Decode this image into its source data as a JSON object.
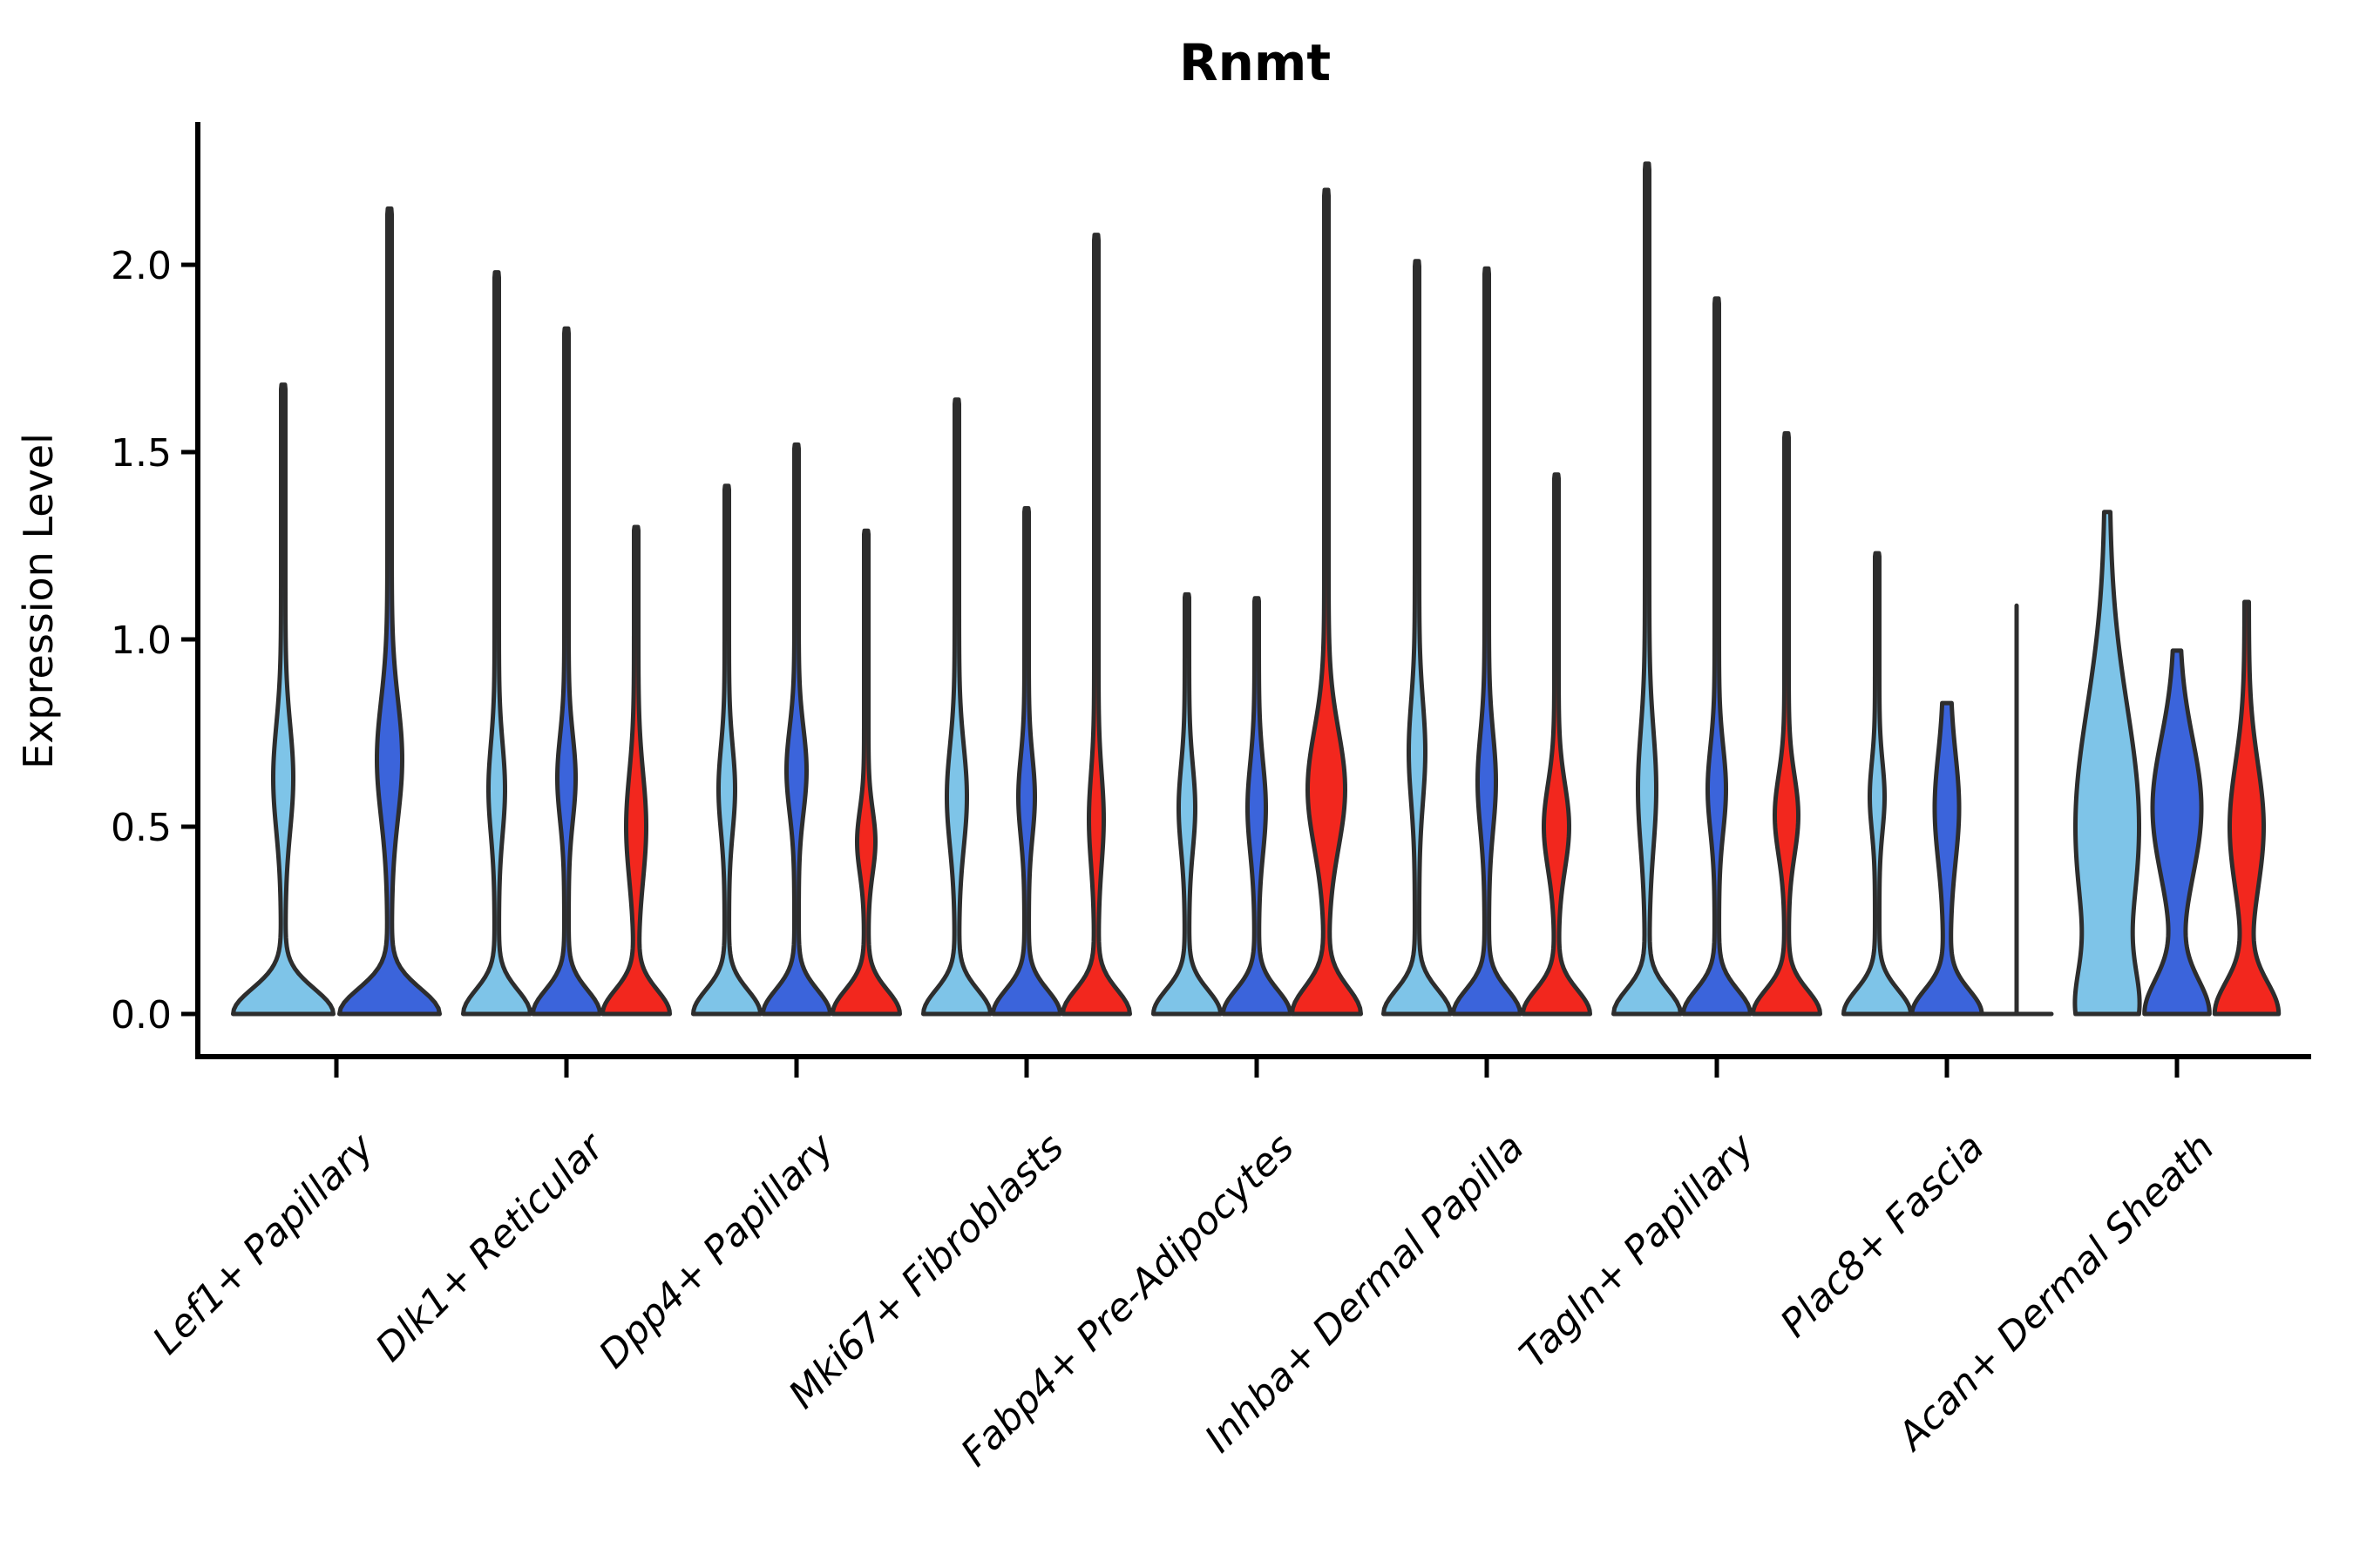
{
  "title": "Rnmt",
  "axes": {
    "ylabel": "Expression Level",
    "ytick_labels": [
      "0.0",
      "0.5",
      "1.0",
      "1.5",
      "2.0"
    ],
    "ytick_values": [
      0.0,
      0.5,
      1.0,
      1.5,
      2.0
    ]
  },
  "style": {
    "background": "#ffffff",
    "outline_color": "#2d2d2d",
    "axis_color": "#000000",
    "stroke_width": 5
  },
  "chart_data": {
    "type": "violin",
    "title": "Rnmt",
    "xlabel": "",
    "ylabel": "Expression Level",
    "ylim": [
      -0.11,
      2.38
    ],
    "grid": false,
    "legend": "none",
    "categories": [
      "Lef1+ Papillary",
      "Dlk1+ Reticular",
      "Dpp4+ Papillary",
      "Mki67+ Fibroblasts",
      "Fabp4+ Pre-Adipocytes",
      "Inhba+ Dermal Papilla",
      "Tagln+ Papillary",
      "Plac8+ Fascia",
      "Acan+ Dermal Sheath"
    ],
    "series_colors": [
      "#7EC4E8",
      "#3B64DB",
      "#F2271E"
    ],
    "violins": [
      {
        "cat": 0,
        "series": 0,
        "max": 1.68,
        "kind": "violin",
        "base_amp": 55,
        "base_sigma": 0.095,
        "bulge_amp": 9,
        "bulge_center": 0.63,
        "bulge_sigma": 0.2,
        "stem": 2.5,
        "tip": 2
      },
      {
        "cat": 0,
        "series": 1,
        "max": 2.15,
        "kind": "violin",
        "base_amp": 55,
        "base_sigma": 0.095,
        "bulge_amp": 12,
        "bulge_center": 0.68,
        "bulge_sigma": 0.22,
        "stem": 2.5,
        "tip": 2
      },
      {
        "cat": 1,
        "series": 0,
        "max": 1.98,
        "kind": "violin",
        "base_amp": 36,
        "base_sigma": 0.09,
        "bulge_amp": 7,
        "bulge_center": 0.6,
        "bulge_sigma": 0.17,
        "stem": 2.5,
        "tip": 2
      },
      {
        "cat": 1,
        "series": 1,
        "max": 1.83,
        "kind": "violin",
        "base_amp": 36,
        "base_sigma": 0.09,
        "bulge_amp": 8,
        "bulge_center": 0.63,
        "bulge_sigma": 0.16,
        "stem": 2.5,
        "tip": 2
      },
      {
        "cat": 1,
        "series": 2,
        "max": 1.3,
        "kind": "violin",
        "base_amp": 36,
        "base_sigma": 0.09,
        "bulge_amp": 9,
        "bulge_center": 0.5,
        "bulge_sigma": 0.2,
        "stem": 2.5,
        "tip": 2
      },
      {
        "cat": 2,
        "series": 0,
        "max": 1.41,
        "kind": "violin",
        "base_amp": 36,
        "base_sigma": 0.09,
        "bulge_amp": 7,
        "bulge_center": 0.6,
        "bulge_sigma": 0.16,
        "stem": 2.5,
        "tip": 2
      },
      {
        "cat": 2,
        "series": 1,
        "max": 1.52,
        "kind": "violin",
        "base_amp": 36,
        "base_sigma": 0.09,
        "bulge_amp": 9,
        "bulge_center": 0.65,
        "bulge_sigma": 0.16,
        "stem": 2.5,
        "tip": 2
      },
      {
        "cat": 2,
        "series": 2,
        "max": 1.29,
        "kind": "violin",
        "base_amp": 36,
        "base_sigma": 0.09,
        "bulge_amp": 8,
        "bulge_center": 0.46,
        "bulge_sigma": 0.12,
        "stem": 2.5,
        "tip": 2
      },
      {
        "cat": 3,
        "series": 0,
        "max": 1.64,
        "kind": "violin",
        "base_amp": 36,
        "base_sigma": 0.09,
        "bulge_amp": 9,
        "bulge_center": 0.58,
        "bulge_sigma": 0.19,
        "stem": 2.5,
        "tip": 2
      },
      {
        "cat": 3,
        "series": 1,
        "max": 1.35,
        "kind": "violin",
        "base_amp": 36,
        "base_sigma": 0.09,
        "bulge_amp": 7,
        "bulge_center": 0.58,
        "bulge_sigma": 0.15,
        "stem": 2.5,
        "tip": 2
      },
      {
        "cat": 3,
        "series": 2,
        "max": 2.08,
        "kind": "violin",
        "base_amp": 36,
        "base_sigma": 0.09,
        "bulge_amp": 6,
        "bulge_center": 0.52,
        "bulge_sigma": 0.17,
        "stem": 2.5,
        "tip": 2
      },
      {
        "cat": 4,
        "series": 0,
        "max": 1.12,
        "kind": "violin",
        "base_amp": 36,
        "base_sigma": 0.09,
        "bulge_amp": 7,
        "bulge_center": 0.55,
        "bulge_sigma": 0.16,
        "stem": 2.5,
        "tip": 2
      },
      {
        "cat": 4,
        "series": 1,
        "max": 1.11,
        "kind": "violin",
        "base_amp": 36,
        "base_sigma": 0.09,
        "bulge_amp": 8,
        "bulge_center": 0.55,
        "bulge_sigma": 0.17,
        "stem": 2.5,
        "tip": 2
      },
      {
        "cat": 4,
        "series": 2,
        "max": 2.2,
        "kind": "violin",
        "base_amp": 37,
        "base_sigma": 0.1,
        "bulge_amp": 19,
        "bulge_center": 0.6,
        "bulge_sigma": 0.22,
        "stem": 2.5,
        "tip": 2
      },
      {
        "cat": 5,
        "series": 0,
        "max": 2.01,
        "kind": "violin",
        "base_amp": 36,
        "base_sigma": 0.09,
        "bulge_amp": 7,
        "bulge_center": 0.7,
        "bulge_sigma": 0.19,
        "stem": 2.5,
        "tip": 2
      },
      {
        "cat": 5,
        "series": 1,
        "max": 1.99,
        "kind": "violin",
        "base_amp": 36,
        "base_sigma": 0.09,
        "bulge_amp": 8,
        "bulge_center": 0.62,
        "bulge_sigma": 0.18,
        "stem": 2.5,
        "tip": 2
      },
      {
        "cat": 5,
        "series": 2,
        "max": 1.44,
        "kind": "violin",
        "base_amp": 36,
        "base_sigma": 0.09,
        "bulge_amp": 12,
        "bulge_center": 0.5,
        "bulge_sigma": 0.16,
        "stem": 2.5,
        "tip": 2
      },
      {
        "cat": 6,
        "series": 0,
        "max": 2.27,
        "kind": "violin",
        "base_amp": 36,
        "base_sigma": 0.09,
        "bulge_amp": 8,
        "bulge_center": 0.6,
        "bulge_sigma": 0.22,
        "stem": 2.5,
        "tip": 2
      },
      {
        "cat": 6,
        "series": 1,
        "max": 1.91,
        "kind": "violin",
        "base_amp": 36,
        "base_sigma": 0.09,
        "bulge_amp": 8,
        "bulge_center": 0.6,
        "bulge_sigma": 0.16,
        "stem": 2.5,
        "tip": 2
      },
      {
        "cat": 6,
        "series": 2,
        "max": 1.55,
        "kind": "violin",
        "base_amp": 36,
        "base_sigma": 0.09,
        "bulge_amp": 11,
        "bulge_center": 0.53,
        "bulge_sigma": 0.15,
        "stem": 2.5,
        "tip": 2
      },
      {
        "cat": 7,
        "series": 0,
        "max": 1.23,
        "kind": "violin",
        "base_amp": 36,
        "base_sigma": 0.09,
        "bulge_amp": 6,
        "bulge_center": 0.58,
        "bulge_sigma": 0.13,
        "stem": 2.5,
        "tip": 2
      },
      {
        "cat": 7,
        "series": 1,
        "max": 0.83,
        "kind": "violin",
        "base_amp": 36,
        "base_sigma": 0.09,
        "bulge_amp": 10,
        "bulge_center": 0.55,
        "bulge_sigma": 0.2,
        "stem": 4,
        "tip": 6
      },
      {
        "cat": 7,
        "series": 2,
        "max": 1.09,
        "kind": "collapsed-line",
        "base_halfwidth": 40,
        "stem": 0,
        "tip": 0
      },
      {
        "cat": 8,
        "series": 0,
        "max": 1.34,
        "kind": "violin",
        "base_amp": 24,
        "base_sigma": 0.16,
        "bulge_amp": 34,
        "bulge_center": 0.5,
        "bulge_sigma": 0.45,
        "stem": 2.5,
        "tip": 5
      },
      {
        "cat": 8,
        "series": 1,
        "max": 0.97,
        "kind": "violin",
        "base_amp": 34,
        "base_sigma": 0.13,
        "bulge_amp": 25,
        "bulge_center": 0.55,
        "bulge_sigma": 0.26,
        "stem": 3,
        "tip": 5
      },
      {
        "cat": 8,
        "series": 2,
        "max": 1.1,
        "kind": "violin",
        "base_amp": 34,
        "base_sigma": 0.12,
        "bulge_amp": 17,
        "bulge_center": 0.5,
        "bulge_sigma": 0.24,
        "stem": 2.5,
        "tip": 2.5
      }
    ]
  }
}
